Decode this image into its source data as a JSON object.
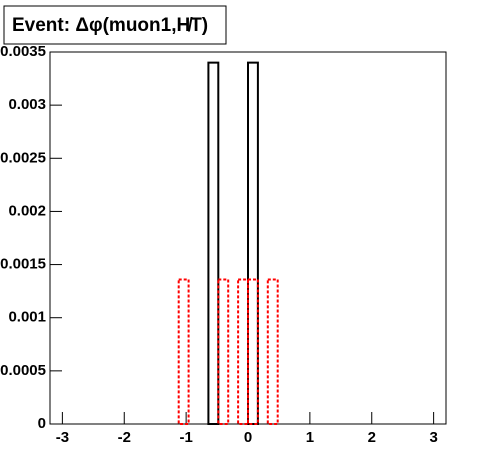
{
  "chart_data": {
    "type": "histogram",
    "title": "Event: Δφ(muon1,H̸T)",
    "bins": [
      -3.2,
      -3.04,
      -2.88,
      -2.72,
      -2.56,
      -2.4,
      -2.24,
      -2.08,
      -1.92,
      -1.76,
      -1.6,
      -1.44,
      -1.28,
      -1.12,
      -0.96,
      -0.8,
      -0.64,
      -0.48,
      -0.32,
      -0.16,
      0,
      0.16,
      0.32,
      0.48,
      0.64,
      0.8,
      0.96,
      1.12,
      1.28,
      1.44,
      1.6,
      1.76,
      1.92,
      2.08,
      2.24,
      2.4,
      2.56,
      2.72,
      2.88,
      3.04,
      3.2
    ],
    "series": [
      {
        "color": "#000000",
        "dashed": false,
        "values": [
          0,
          0,
          0,
          0,
          0,
          0,
          0,
          0,
          0,
          0,
          0,
          0,
          0,
          0,
          0,
          0,
          0.0034,
          0,
          0,
          0,
          0.0034,
          0,
          0,
          0,
          0,
          0,
          0,
          0,
          0,
          0,
          0,
          0,
          0,
          0,
          0,
          0,
          0,
          0,
          0,
          0
        ]
      },
      {
        "color": "#ff0000",
        "dashed": true,
        "values": [
          0,
          0,
          0,
          0,
          0,
          0,
          0,
          0,
          0,
          0,
          0,
          0,
          0,
          0.00136,
          0,
          0,
          0,
          0.00136,
          0,
          0.00136,
          0.00136,
          0,
          0.00136,
          0,
          0,
          0,
          0,
          0,
          0,
          0,
          0,
          0,
          0,
          0,
          0,
          0,
          0,
          0,
          0,
          0
        ]
      }
    ],
    "xlim": [
      -3.2,
      3.2
    ],
    "xticks": [
      -3,
      -2,
      -1,
      0,
      1,
      2,
      3
    ],
    "ylim": [
      0,
      0.0035
    ],
    "yticks": [
      0,
      0.0005,
      0.001,
      0.0015,
      0.002,
      0.0025,
      0.003,
      0.0035
    ]
  }
}
